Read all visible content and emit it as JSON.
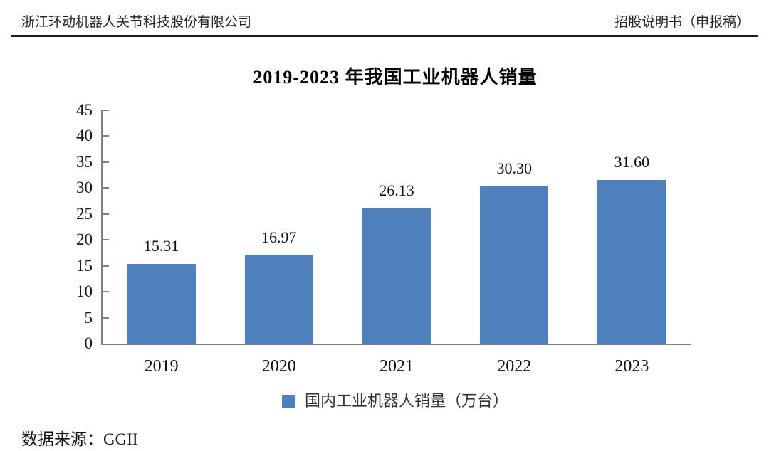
{
  "header": {
    "company": "浙江环动机器人关节科技股份有限公司",
    "doc_label": "招股说明书（申报稿）"
  },
  "chart_data": {
    "type": "bar",
    "title": "2019-2023 年我国工业机器人销量",
    "categories": [
      "2019",
      "2020",
      "2021",
      "2022",
      "2023"
    ],
    "values": [
      "15.31",
      "16.97",
      "26.13",
      "30.30",
      "31.60"
    ],
    "legend": "国内工业机器人销量（万台）",
    "legend_position": "bottom",
    "ylim": [
      0,
      45
    ],
    "ytick_step": 5,
    "yticks": [
      "0",
      "5",
      "10",
      "15",
      "20",
      "25",
      "30",
      "35",
      "40",
      "45"
    ],
    "grid": false,
    "bar_color": "#4D80BC",
    "axis_color": "#808080"
  },
  "source": {
    "label": "数据来源：GGII"
  }
}
